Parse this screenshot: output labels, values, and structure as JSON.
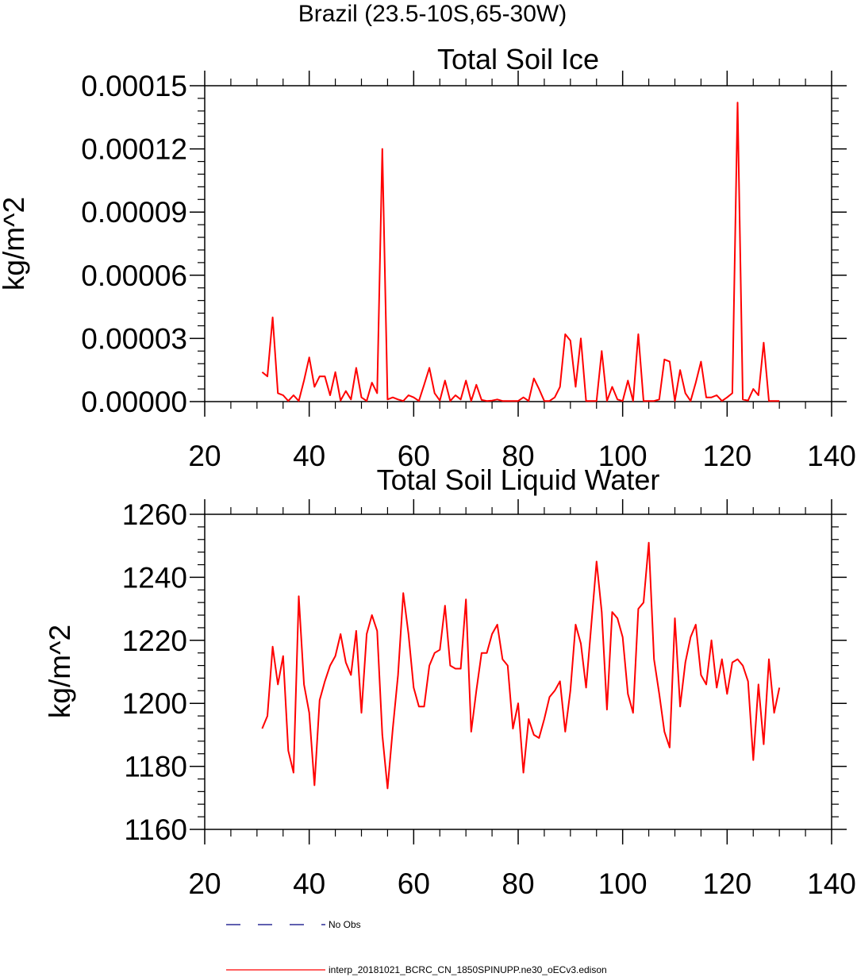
{
  "figure_title": "Brazil (23.5-10S,65-30W)",
  "legend": [
    {
      "label": "No Obs",
      "color": "#000080",
      "style": "dashed"
    },
    {
      "label": "interp_20181021_BCRC_CN_1850SPINUPP.ne30_oECv3.edison",
      "color": "#ff0000",
      "style": "solid"
    }
  ],
  "chart_data": [
    {
      "type": "line",
      "title": "Total Soil Ice",
      "xlabel": "",
      "ylabel": "kg/m^2",
      "xlim": [
        20,
        140
      ],
      "ylim": [
        0,
        0.00015
      ],
      "xticks": [
        20,
        40,
        60,
        80,
        100,
        120,
        140
      ],
      "xtick_labels": [
        "20",
        "40",
        "60",
        "80",
        "100",
        "120",
        "140"
      ],
      "yticks": [
        0,
        3e-05,
        6e-05,
        9e-05,
        0.00012,
        0.00015
      ],
      "ytick_labels": [
        "0.00000",
        "0.00003",
        "0.00006",
        "0.00009",
        "0.00012",
        "0.00015"
      ],
      "series": [
        {
          "name": "interp_20181021_BCRC_CN_1850SPINUPP.ne30_oECv3.edison",
          "color": "#ff0000",
          "x": [
            31,
            32,
            33,
            34,
            35,
            36,
            37,
            38,
            39,
            40,
            41,
            42,
            43,
            44,
            45,
            46,
            47,
            48,
            49,
            50,
            51,
            52,
            53,
            54,
            55,
            56,
            57,
            58,
            59,
            60,
            61,
            62,
            63,
            64,
            65,
            66,
            67,
            68,
            69,
            70,
            71,
            72,
            73,
            74,
            75,
            76,
            77,
            78,
            79,
            80,
            81,
            82,
            83,
            84,
            85,
            86,
            87,
            88,
            89,
            90,
            91,
            92,
            93,
            94,
            95,
            96,
            97,
            98,
            99,
            100,
            101,
            102,
            103,
            104,
            105,
            106,
            107,
            108,
            109,
            110,
            111,
            112,
            113,
            114,
            115,
            116,
            117,
            118,
            119,
            120,
            121,
            122,
            123,
            124,
            125,
            126,
            127,
            128,
            129,
            130
          ],
          "y": [
            1.4e-05,
            1.2e-05,
            4e-05,
            4e-06,
            3e-06,
            3e-07,
            3e-06,
            3e-07,
            1e-05,
            2.1e-05,
            7e-06,
            1.2e-05,
            1.2e-05,
            3e-06,
            1.4e-05,
            5e-07,
            5e-06,
            1e-06,
            1.6e-05,
            2e-06,
            3e-07,
            9e-06,
            4e-06,
            0.00012,
            1e-06,
            2e-06,
            1e-06,
            3e-07,
            3e-06,
            2e-06,
            3e-07,
            8e-06,
            1.6e-05,
            4e-06,
            5e-07,
            1e-05,
            3e-07,
            3e-06,
            1e-06,
            1e-05,
            3e-07,
            8e-06,
            8e-07,
            3e-07,
            5e-07,
            1e-06,
            3e-07,
            3e-07,
            3e-07,
            3e-07,
            2e-06,
            3e-07,
            1.1e-05,
            6e-06,
            3e-07,
            3e-07,
            2e-06,
            7e-06,
            3.2e-05,
            2.9e-05,
            7e-06,
            3e-05,
            3e-07,
            3e-07,
            3e-07,
            2.4e-05,
            3e-07,
            7e-06,
            1e-06,
            3e-07,
            1e-05,
            3e-07,
            3.2e-05,
            3e-07,
            3e-07,
            3e-07,
            1e-06,
            2e-05,
            1.9e-05,
            3e-07,
            1.5e-05,
            4e-06,
            3e-07,
            9e-06,
            1.9e-05,
            2e-06,
            2e-06,
            3e-06,
            3e-07,
            2e-06,
            4e-06,
            0.000142,
            1e-06,
            5e-07,
            6e-06,
            3e-06,
            2.8e-05,
            3e-07,
            3e-07,
            3e-07
          ]
        }
      ]
    },
    {
      "type": "line",
      "title": "Total Soil Liquid Water",
      "xlabel": "",
      "ylabel": "kg/m^2",
      "xlim": [
        20,
        140
      ],
      "ylim": [
        1160,
        1260
      ],
      "xticks": [
        20,
        40,
        60,
        80,
        100,
        120,
        140
      ],
      "xtick_labels": [
        "20",
        "40",
        "60",
        "80",
        "100",
        "120",
        "140"
      ],
      "yticks": [
        1160,
        1180,
        1200,
        1220,
        1240,
        1260
      ],
      "ytick_labels": [
        "1160",
        "1180",
        "1200",
        "1220",
        "1240",
        "1260"
      ],
      "series": [
        {
          "name": "interp_20181021_BCRC_CN_1850SPINUPP.ne30_oECv3.edison",
          "color": "#ff0000",
          "x": [
            31,
            32,
            33,
            34,
            35,
            36,
            37,
            38,
            39,
            40,
            41,
            42,
            43,
            44,
            45,
            46,
            47,
            48,
            49,
            50,
            51,
            52,
            53,
            54,
            55,
            56,
            57,
            58,
            59,
            60,
            61,
            62,
            63,
            64,
            65,
            66,
            67,
            68,
            69,
            70,
            71,
            72,
            73,
            74,
            75,
            76,
            77,
            78,
            79,
            80,
            81,
            82,
            83,
            84,
            85,
            86,
            87,
            88,
            89,
            90,
            91,
            92,
            93,
            94,
            95,
            96,
            97,
            98,
            99,
            100,
            101,
            102,
            103,
            104,
            105,
            106,
            107,
            108,
            109,
            110,
            111,
            112,
            113,
            114,
            115,
            116,
            117,
            118,
            119,
            120,
            121,
            122,
            123,
            124,
            125,
            126,
            127,
            128,
            129,
            130
          ],
          "y": [
            1192,
            1196,
            1218,
            1206,
            1215,
            1185,
            1178,
            1234,
            1206,
            1197,
            1174,
            1201,
            1207,
            1212,
            1215,
            1222,
            1213,
            1209,
            1223,
            1197,
            1222,
            1228,
            1223,
            1190,
            1173,
            1192,
            1209,
            1235,
            1222,
            1205,
            1199,
            1199,
            1212,
            1216,
            1217,
            1231,
            1212,
            1211,
            1211,
            1233,
            1191,
            1204,
            1216,
            1216,
            1222,
            1225,
            1214,
            1212,
            1192,
            1200,
            1178,
            1195,
            1190,
            1189,
            1195,
            1202,
            1204,
            1207,
            1191,
            1204,
            1225,
            1219,
            1205,
            1225,
            1245,
            1229,
            1198,
            1229,
            1227,
            1221,
            1203,
            1197,
            1230,
            1232,
            1251,
            1214,
            1203,
            1191,
            1186,
            1227,
            1199,
            1213,
            1221,
            1225,
            1209,
            1206,
            1220,
            1205,
            1214,
            1203,
            1213,
            1214,
            1212,
            1207,
            1182,
            1206,
            1187,
            1214,
            1197,
            1205
          ]
        }
      ]
    }
  ]
}
